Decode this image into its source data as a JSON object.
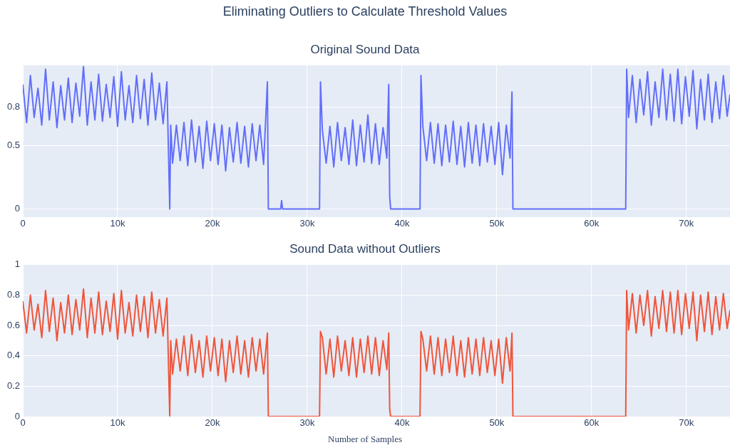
{
  "chart_data": [
    {
      "type": "line",
      "title": "Eliminating Outliers to Calculate Threshold Values",
      "subtitle": "Original Sound Data",
      "x": [
        0,
        400,
        800,
        1200,
        1600,
        2000,
        2400,
        2800,
        3200,
        3600,
        4000,
        4400,
        4800,
        5200,
        5600,
        6000,
        6400,
        6800,
        7200,
        7600,
        8000,
        8400,
        8800,
        9200,
        9600,
        10000,
        10400,
        10800,
        11200,
        11600,
        12000,
        12400,
        12800,
        13200,
        13600,
        14000,
        14400,
        14800,
        15200,
        15500,
        15600,
        15800,
        16200,
        16600,
        17000,
        17400,
        17800,
        18200,
        18600,
        19000,
        19400,
        19800,
        20200,
        20600,
        21000,
        21400,
        21800,
        22200,
        22600,
        23000,
        23400,
        23800,
        24200,
        24600,
        25000,
        25400,
        25800,
        25900,
        27200,
        27300,
        27400,
        31300,
        31400,
        31600,
        32000,
        32400,
        32800,
        33200,
        33600,
        34000,
        34400,
        34800,
        35200,
        35600,
        36000,
        36400,
        36800,
        37200,
        37600,
        38000,
        38400,
        38600,
        38700,
        38800,
        41900,
        42000,
        42200,
        42600,
        43000,
        43400,
        43800,
        44200,
        44600,
        45000,
        45400,
        45800,
        46200,
        46600,
        47000,
        47400,
        47800,
        48200,
        48600,
        49000,
        49400,
        49800,
        50200,
        50600,
        51000,
        51400,
        51600,
        51700,
        63600,
        63700,
        63900,
        64300,
        64700,
        65100,
        65500,
        65900,
        66300,
        66700,
        67100,
        67500,
        67900,
        68300,
        68700,
        69100,
        69500,
        69900,
        70300,
        70700,
        71100,
        71500,
        71900,
        72300,
        72700,
        73100,
        73500,
        73900,
        74300,
        74600
      ],
      "series": [
        {
          "color": "#636efa",
          "values": [
            0.98,
            0.68,
            1.05,
            0.72,
            0.95,
            0.66,
            1.1,
            0.7,
            1.0,
            0.64,
            0.97,
            0.7,
            1.03,
            0.68,
            0.99,
            0.73,
            1.12,
            0.66,
            1.0,
            0.7,
            1.06,
            0.69,
            0.98,
            0.72,
            1.04,
            0.65,
            1.08,
            0.7,
            0.97,
            0.68,
            1.05,
            0.71,
            1.02,
            0.66,
            1.07,
            0.7,
            0.99,
            0.67,
            1.0,
            0,
            0.66,
            0.36,
            0.66,
            0.38,
            0.68,
            0.34,
            0.7,
            0.37,
            0.65,
            0.32,
            0.69,
            0.38,
            0.67,
            0.35,
            0.66,
            0.3,
            0.64,
            0.37,
            0.68,
            0.36,
            0.65,
            0.33,
            0.67,
            0.38,
            0.66,
            0.35,
            1.0,
            0,
            0,
            0.065,
            0,
            0,
            1.0,
            0.62,
            0.36,
            0.65,
            0.33,
            0.68,
            0.38,
            0.64,
            0.35,
            0.7,
            0.34,
            0.66,
            0.37,
            0.74,
            0.36,
            0.67,
            0.35,
            0.64,
            0.4,
            0.98,
            0.1,
            0,
            0,
            1.05,
            0.65,
            0.38,
            0.68,
            0.36,
            0.67,
            0.34,
            0.66,
            0.37,
            0.69,
            0.35,
            0.65,
            0.33,
            0.68,
            0.36,
            0.66,
            0.34,
            0.67,
            0.37,
            0.65,
            0.35,
            0.68,
            0.27,
            0.66,
            0.4,
            0.92,
            0,
            0,
            1.1,
            0.72,
            1.05,
            0.68,
            1.02,
            0.74,
            1.08,
            0.66,
            1.0,
            0.72,
            1.1,
            0.7,
            1.06,
            0.69,
            1.1,
            0.67,
            1.04,
            0.73,
            1.09,
            0.63,
            1.02,
            0.7,
            1.06,
            0.68,
            1.0,
            0.71,
            1.05,
            0.73,
            0.9
          ]
        }
      ],
      "xlim": [
        0,
        74600
      ],
      "xticks": [
        0,
        {
          "value": 10000,
          "label": "10k"
        },
        {
          "value": 20000,
          "label": "20k"
        },
        {
          "value": 30000,
          "label": "30k"
        },
        {
          "value": 40000,
          "label": "40k"
        },
        {
          "value": 50000,
          "label": "50k"
        },
        {
          "value": 60000,
          "label": "60k"
        },
        {
          "value": 70000,
          "label": "70k"
        }
      ],
      "ylim": [
        -0.065,
        1.13
      ],
      "yticks": [
        0,
        0.5,
        0.8
      ],
      "grid": true,
      "legend": false,
      "marker": "none",
      "line_style": "solid"
    },
    {
      "type": "line",
      "title": "Sound Data without Outliers",
      "xlabel": "Number of Samples",
      "x": [
        0,
        400,
        800,
        1200,
        1600,
        2000,
        2400,
        2800,
        3200,
        3600,
        4000,
        4400,
        4800,
        5200,
        5600,
        6000,
        6400,
        6800,
        7200,
        7600,
        8000,
        8400,
        8800,
        9200,
        9600,
        10000,
        10400,
        10800,
        11200,
        11600,
        12000,
        12400,
        12800,
        13200,
        13600,
        14000,
        14400,
        14800,
        15200,
        15500,
        15600,
        15800,
        16200,
        16600,
        17000,
        17400,
        17800,
        18200,
        18600,
        19000,
        19400,
        19800,
        20200,
        20600,
        21000,
        21400,
        21800,
        22200,
        22600,
        23000,
        23400,
        23800,
        24200,
        24600,
        25000,
        25400,
        25800,
        25900,
        27200,
        27300,
        27400,
        31300,
        31400,
        31600,
        32000,
        32400,
        32800,
        33200,
        33600,
        34000,
        34400,
        34800,
        35200,
        35600,
        36000,
        36400,
        36800,
        37200,
        37600,
        38000,
        38400,
        38600,
        38700,
        38800,
        41900,
        42000,
        42200,
        42600,
        43000,
        43400,
        43800,
        44200,
        44600,
        45000,
        45400,
        45800,
        46200,
        46600,
        47000,
        47400,
        47800,
        48200,
        48600,
        49000,
        49400,
        49800,
        50200,
        50600,
        51000,
        51400,
        51600,
        51700,
        63600,
        63700,
        63900,
        64300,
        64700,
        65100,
        65500,
        65900,
        66300,
        66700,
        67100,
        67500,
        67900,
        68300,
        68700,
        69100,
        69500,
        69900,
        70300,
        70700,
        71100,
        71500,
        71900,
        72300,
        72700,
        73100,
        73500,
        73900,
        74300,
        74600
      ],
      "series": [
        {
          "color": "#ef553b",
          "values": [
            0.76,
            0.55,
            0.8,
            0.57,
            0.74,
            0.52,
            0.83,
            0.56,
            0.78,
            0.5,
            0.75,
            0.55,
            0.8,
            0.54,
            0.77,
            0.57,
            0.84,
            0.52,
            0.78,
            0.55,
            0.82,
            0.54,
            0.76,
            0.56,
            0.81,
            0.51,
            0.83,
            0.55,
            0.75,
            0.53,
            0.8,
            0.56,
            0.79,
            0.52,
            0.82,
            0.55,
            0.77,
            0.53,
            0.78,
            0,
            0.5,
            0.28,
            0.51,
            0.3,
            0.53,
            0.27,
            0.54,
            0.29,
            0.5,
            0.26,
            0.53,
            0.3,
            0.52,
            0.27,
            0.51,
            0.23,
            0.5,
            0.29,
            0.53,
            0.28,
            0.5,
            0.26,
            0.52,
            0.3,
            0.51,
            0.28,
            0.55,
            0,
            0,
            0,
            0,
            0,
            0.56,
            0.52,
            0.28,
            0.51,
            0.26,
            0.53,
            0.3,
            0.5,
            0.27,
            0.52,
            0.26,
            0.51,
            0.29,
            0.53,
            0.28,
            0.52,
            0.27,
            0.5,
            0.31,
            0.55,
            0.05,
            0,
            0,
            0.56,
            0.51,
            0.3,
            0.53,
            0.28,
            0.52,
            0.27,
            0.51,
            0.29,
            0.53,
            0.27,
            0.5,
            0.26,
            0.52,
            0.28,
            0.51,
            0.27,
            0.52,
            0.29,
            0.5,
            0.27,
            0.51,
            0.22,
            0.52,
            0.3,
            0.55,
            0,
            0,
            0.83,
            0.57,
            0.81,
            0.55,
            0.8,
            0.6,
            0.83,
            0.53,
            0.79,
            0.58,
            0.83,
            0.56,
            0.82,
            0.55,
            0.83,
            0.54,
            0.81,
            0.58,
            0.82,
            0.5,
            0.8,
            0.56,
            0.82,
            0.54,
            0.79,
            0.57,
            0.81,
            0.58,
            0.7
          ]
        }
      ],
      "xlim": [
        0,
        74600
      ],
      "xticks": [
        0,
        {
          "value": 10000,
          "label": "10k"
        },
        {
          "value": 20000,
          "label": "20k"
        },
        {
          "value": 30000,
          "label": "30k"
        },
        {
          "value": 40000,
          "label": "40k"
        },
        {
          "value": 50000,
          "label": "50k"
        },
        {
          "value": 60000,
          "label": "60k"
        },
        {
          "value": 70000,
          "label": "70k"
        }
      ],
      "ylim": [
        0,
        1
      ],
      "yticks": [
        0,
        0.2,
        0.4,
        0.6,
        0.8,
        1
      ],
      "grid": true,
      "legend": false,
      "marker": "none",
      "line_style": "solid"
    }
  ]
}
